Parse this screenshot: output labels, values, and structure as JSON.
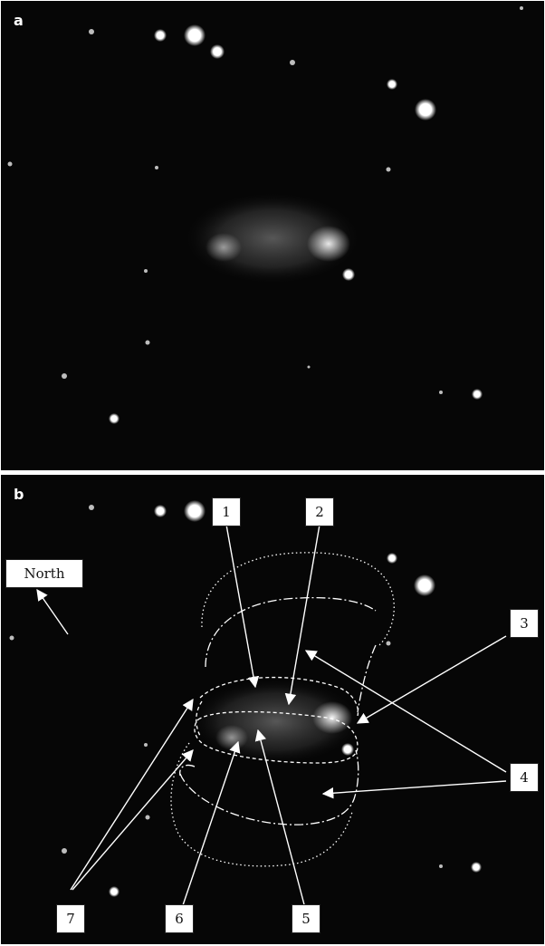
{
  "panel_a": {
    "label": "a"
  },
  "panel_b": {
    "label": "b",
    "compass_label": "North",
    "callouts": [
      "1",
      "2",
      "3",
      "4",
      "5",
      "6",
      "7"
    ]
  },
  "colors": {
    "sky": "#060606",
    "star": "#ffffff",
    "nebula": "#cfcfcf",
    "annotation": "#ffffff"
  }
}
